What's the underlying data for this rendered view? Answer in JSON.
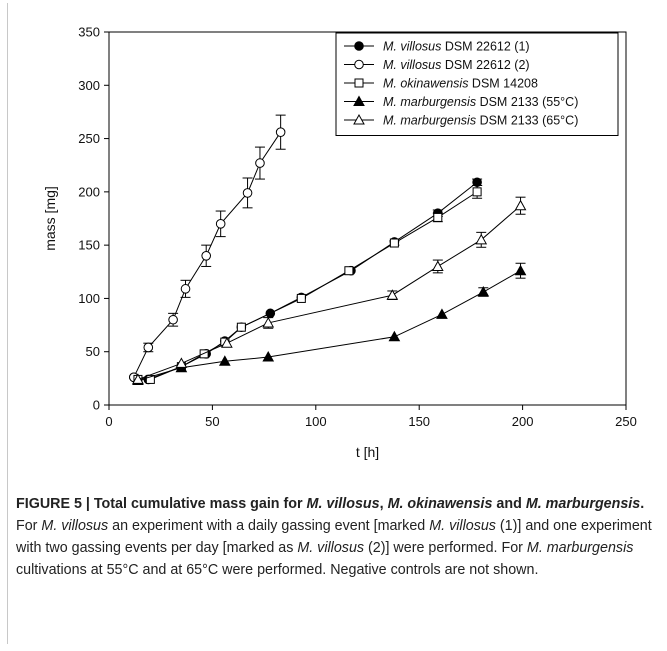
{
  "chart_data": {
    "type": "line",
    "xlabel": "t [h]",
    "ylabel": "mass [mg]",
    "xlim": [
      0,
      250
    ],
    "ylim": [
      0,
      350
    ],
    "xticks": [
      0,
      50,
      100,
      150,
      200,
      250
    ],
    "yticks": [
      0,
      50,
      100,
      150,
      200,
      250,
      300,
      350
    ],
    "grid": false,
    "legend_position": "top-right",
    "series": [
      {
        "name_parts": [
          {
            "text": "M. villosus",
            "italic": true
          },
          {
            "text": " DSM 22612 (1)",
            "italic": false
          }
        ],
        "marker": "circle-filled",
        "x": [
          12,
          19,
          35,
          47,
          56,
          64,
          78,
          93,
          117,
          138,
          159,
          178
        ],
        "y": [
          26,
          24,
          36,
          48,
          60,
          73,
          86,
          101,
          126,
          153,
          180,
          209
        ],
        "err": [
          0,
          0,
          0,
          0,
          0,
          0,
          0,
          0,
          0,
          0,
          3,
          3
        ]
      },
      {
        "name_parts": [
          {
            "text": "M. villosus",
            "italic": true
          },
          {
            "text": " DSM 22612 (2)",
            "italic": false
          }
        ],
        "marker": "circle-open",
        "x": [
          12,
          19,
          31,
          37,
          47,
          54,
          67,
          73,
          83
        ],
        "y": [
          26,
          54,
          80,
          109,
          140,
          170,
          199,
          227,
          256
        ],
        "err": [
          0,
          4,
          6,
          8,
          10,
          12,
          14,
          15,
          16
        ]
      },
      {
        "name_parts": [
          {
            "text": "M. okinawensis",
            "italic": true
          },
          {
            "text": " DSM 14208",
            "italic": false
          }
        ],
        "marker": "square-open",
        "x": [
          14,
          20,
          35,
          46,
          56,
          64,
          93,
          116,
          138,
          159,
          178
        ],
        "y": [
          24,
          24,
          36,
          48,
          59,
          73,
          100,
          126,
          152,
          176,
          200
        ],
        "err": [
          0,
          0,
          0,
          0,
          0,
          0,
          0,
          0,
          2,
          4,
          6
        ]
      },
      {
        "name_parts": [
          {
            "text": "M. marburgensis",
            "italic": true
          },
          {
            "text": " DSM 2133 (55°C)",
            "italic": false
          }
        ],
        "marker": "triangle-filled",
        "x": [
          14,
          35,
          56,
          77,
          138,
          161,
          181,
          199
        ],
        "y": [
          23,
          35,
          41,
          45,
          64,
          85,
          106,
          126
        ],
        "err": [
          0,
          0,
          0,
          0,
          0,
          0,
          4,
          7
        ]
      },
      {
        "name_parts": [
          {
            "text": "M. marburgensis",
            "italic": true
          },
          {
            "text": " DSM 2133 (65°C)",
            "italic": false
          }
        ],
        "marker": "triangle-open",
        "x": [
          14,
          35,
          57,
          77,
          137,
          159,
          180,
          199
        ],
        "y": [
          24,
          39,
          58,
          77,
          103,
          130,
          155,
          187
        ],
        "err": [
          0,
          0,
          0,
          5,
          4,
          6,
          7,
          8
        ]
      }
    ]
  },
  "caption": {
    "bold": [
      {
        "text": "FIGURE 5 | Total cumulative mass gain for ",
        "italic": false
      },
      {
        "text": "M. villosus",
        "italic": true
      },
      {
        "text": ", ",
        "italic": false
      },
      {
        "text": "M. okinawensis",
        "italic": true
      },
      {
        "text": " and ",
        "italic": false
      },
      {
        "text": "M. marburgensis",
        "italic": true
      },
      {
        "text": ".",
        "italic": false
      }
    ],
    "body": [
      {
        "text": " For ",
        "italic": false
      },
      {
        "text": "M. villosus",
        "italic": true
      },
      {
        "text": " an experiment with a daily gassing event [marked ",
        "italic": false
      },
      {
        "text": "M. villosus",
        "italic": true
      },
      {
        "text": " (1)] and one experiment with two gassing events per day [marked as ",
        "italic": false
      },
      {
        "text": "M. villosus",
        "italic": true
      },
      {
        "text": " (2)] were performed. For ",
        "italic": false
      },
      {
        "text": "M. marburgensis",
        "italic": true
      },
      {
        "text": " cultivations at 55°C and at 65°C were performed. Negative controls are not shown.",
        "italic": false
      }
    ]
  }
}
